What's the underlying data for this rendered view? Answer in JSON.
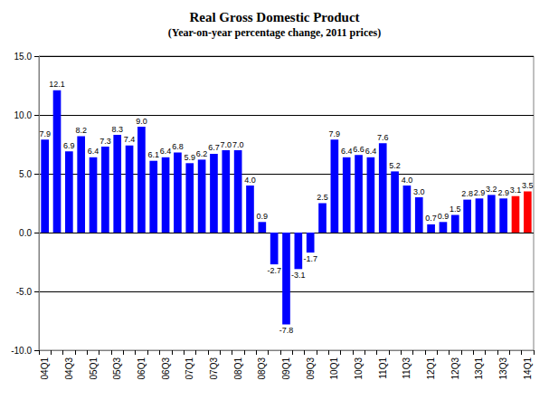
{
  "chart_data": {
    "type": "bar",
    "title": "Real Gross Domestic Product",
    "subtitle": "(Year-on-year percentage change, 2011 prices)",
    "categories": [
      "04Q1",
      null,
      "04Q3",
      null,
      "05Q1",
      null,
      "05Q3",
      null,
      "06Q1",
      null,
      "06Q3",
      null,
      "07Q1",
      null,
      "07Q3",
      null,
      "08Q1",
      null,
      "08Q3",
      null,
      "09Q1",
      null,
      "09Q3",
      null,
      "10Q1",
      null,
      "10Q3",
      null,
      "11Q1",
      null,
      "11Q3",
      null,
      "12Q1",
      null,
      "12Q3",
      null,
      "13Q1",
      null,
      "13Q3",
      null,
      "14Q1"
    ],
    "values": [
      7.9,
      12.1,
      6.9,
      8.2,
      6.4,
      7.3,
      8.3,
      7.4,
      9.0,
      6.1,
      6.4,
      6.8,
      5.9,
      6.2,
      6.7,
      7.0,
      7.0,
      4.0,
      0.9,
      -2.7,
      -7.8,
      -3.1,
      -1.7,
      2.5,
      7.9,
      6.4,
      6.6,
      6.4,
      7.6,
      5.2,
      4.0,
      3.0,
      0.7,
      0.9,
      1.5,
      2.8,
      2.9,
      3.2,
      2.9,
      3.1,
      3.5
    ],
    "value_labels": [
      "7.9",
      "12.1",
      "6.9",
      "8.2",
      "6.4",
      "7.3",
      "8.3",
      "7.4",
      "9.0",
      "6.1",
      "6.4",
      "6.8",
      "5.9",
      "6.2",
      "6.7",
      "7.0",
      "7.0",
      "4.0",
      "0.9",
      "-2.7",
      "-7.8",
      "-3.1",
      "-1.7",
      "2.5",
      "7.9",
      "6.4",
      "6.6",
      "6.4",
      "7.6",
      "5.2",
      "4.0",
      "3.0",
      "0.7",
      "0.9",
      "1.5",
      "2.8",
      "2.9",
      "3.2",
      "2.9",
      "3.1",
      "3.5"
    ],
    "colors": [
      "#0000ff",
      "#0000ff",
      "#0000ff",
      "#0000ff",
      "#0000ff",
      "#0000ff",
      "#0000ff",
      "#0000ff",
      "#0000ff",
      "#0000ff",
      "#0000ff",
      "#0000ff",
      "#0000ff",
      "#0000ff",
      "#0000ff",
      "#0000ff",
      "#0000ff",
      "#0000ff",
      "#0000ff",
      "#0000ff",
      "#0000ff",
      "#0000ff",
      "#0000ff",
      "#0000ff",
      "#0000ff",
      "#0000ff",
      "#0000ff",
      "#0000ff",
      "#0000ff",
      "#0000ff",
      "#0000ff",
      "#0000ff",
      "#0000ff",
      "#0000ff",
      "#0000ff",
      "#0000ff",
      "#0000ff",
      "#0000ff",
      "#0000ff",
      "#ff0000",
      "#ff0000"
    ],
    "ylim": [
      -10,
      15
    ],
    "yticks": [
      {
        "value": -10,
        "label": "-10.0"
      },
      {
        "value": -5,
        "label": "-5.0"
      },
      {
        "value": 0,
        "label": "0.0"
      },
      {
        "value": 5,
        "label": "5.0"
      },
      {
        "value": 10,
        "label": "10.0"
      },
      {
        "value": 15,
        "label": "15.0"
      }
    ],
    "grid": true,
    "data_labels": true
  }
}
